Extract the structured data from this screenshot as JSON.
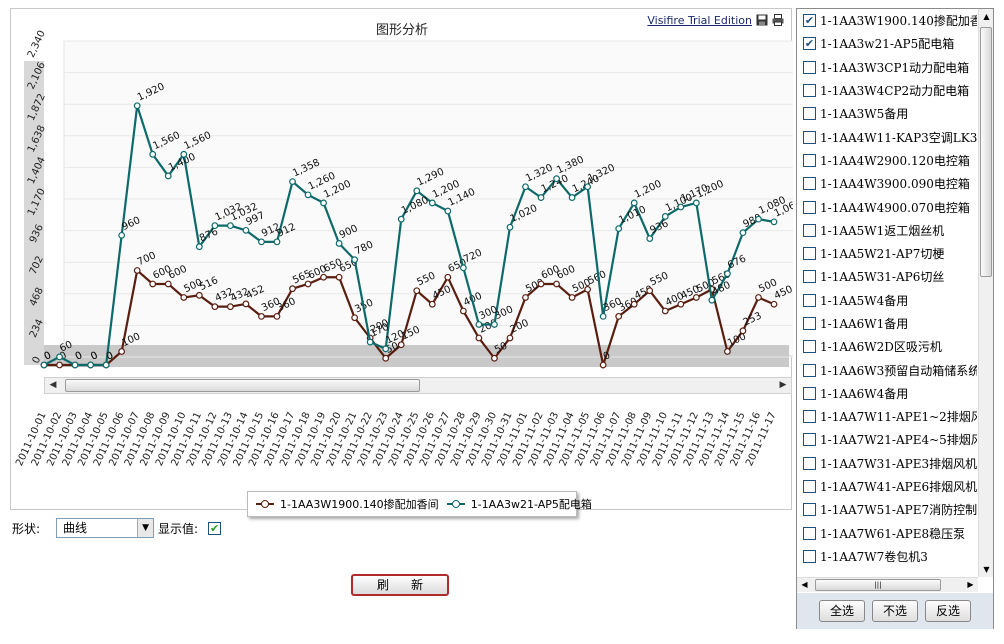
{
  "chart": {
    "title": "图形分析",
    "trial_link": "Visifire Trial Edition"
  },
  "legend": [
    {
      "name": "1-1AA3W1900.140掺配加香间",
      "color": "#5a1e10"
    },
    {
      "name": "1-1AA3w21-AP5配电箱",
      "color": "#0e6a6a"
    }
  ],
  "controls": {
    "shape_label": "形状:",
    "shape_value": "曲线",
    "show_values_label": "显示值:",
    "show_values_checked": true
  },
  "refresh_button": "刷新",
  "panel": {
    "items": [
      {
        "label": "1-1AA3W1900.140掺配加香间",
        "checked": true
      },
      {
        "label": "1-1AA3w21-AP5配电箱",
        "checked": true
      },
      {
        "label": "1-1AA3W3CP1动力配电箱",
        "checked": false
      },
      {
        "label": "1-1AA3W4CP2动力配电箱",
        "checked": false
      },
      {
        "label": "1-1AA3W5备用",
        "checked": false
      },
      {
        "label": "1-1AA4W11-KAP3空调LK3",
        "checked": false
      },
      {
        "label": "1-1AA4W2900.120电控箱",
        "checked": false
      },
      {
        "label": "1-1AA4W3900.090电控箱",
        "checked": false
      },
      {
        "label": "1-1AA4W4900.070电控箱",
        "checked": false
      },
      {
        "label": "1-1AA5W1返工烟丝机",
        "checked": false
      },
      {
        "label": "1-1AA5W21-AP7切梗",
        "checked": false
      },
      {
        "label": "1-1AA5W31-AP6切丝",
        "checked": false
      },
      {
        "label": "1-1AA5W4备用",
        "checked": false
      },
      {
        "label": "1-1AA6W1备用",
        "checked": false
      },
      {
        "label": "1-1AA6W2D区吸污机",
        "checked": false
      },
      {
        "label": "1-1AA6W3预留自动箱储系统",
        "checked": false
      },
      {
        "label": "1-1AA6W4备用",
        "checked": false
      },
      {
        "label": "1-1AA7W11-APE1~2排烟风机",
        "checked": false
      },
      {
        "label": "1-1AA7W21-APE4~5排烟风机",
        "checked": false
      },
      {
        "label": "1-1AA7W31-APE3排烟风机",
        "checked": false
      },
      {
        "label": "1-1AA7W41-APE6排烟风机",
        "checked": false
      },
      {
        "label": "1-1AA7W51-APE7消防控制室",
        "checked": false
      },
      {
        "label": "1-1AA7W61-APE8稳压泵",
        "checked": false
      },
      {
        "label": "1-1AA7W7卷包机3",
        "checked": false
      }
    ],
    "select_all": "全选",
    "select_none": "不选",
    "invert": "反选"
  },
  "chart_data": {
    "type": "line",
    "title": "图形分析",
    "xlabel": "",
    "ylabel": "",
    "ylim": [
      0,
      2340
    ],
    "yticks": [
      0,
      234,
      468,
      702,
      936,
      1170,
      1404,
      1638,
      1872,
      2106,
      2340
    ],
    "x": [
      "2011-10-01",
      "2011-10-02",
      "2011-10-03",
      "2011-10-04",
      "2011-10-05",
      "2011-10-06",
      "2011-10-07",
      "2011-10-08",
      "2011-10-09",
      "2011-10-10",
      "2011-10-11",
      "2011-10-12",
      "2011-10-13",
      "2011-10-14",
      "2011-10-15",
      "2011-10-16",
      "2011-10-17",
      "2011-10-18",
      "2011-10-19",
      "2011-10-20",
      "2011-10-21",
      "2011-10-22",
      "2011-10-23",
      "2011-10-24",
      "2011-10-25",
      "2011-10-26",
      "2011-10-27",
      "2011-10-28",
      "2011-10-29",
      "2011-10-30",
      "2011-10-31",
      "2011-11-01",
      "2011-11-02",
      "2011-11-03",
      "2011-11-04",
      "2011-11-05",
      "2011-11-06",
      "2011-11-07",
      "2011-11-08",
      "2011-11-09",
      "2011-11-10",
      "2011-11-11",
      "2011-11-12",
      "2011-11-13",
      "2011-11-14",
      "2011-11-15",
      "2011-11-16",
      "2011-11-17"
    ],
    "series": [
      {
        "name": "1-1AA3W1900.140掺配加香间",
        "color": "#5a1e10",
        "values": [
          0,
          0,
          0,
          0,
          0,
          100,
          700,
          600,
          600,
          500,
          516,
          432,
          432,
          452,
          360,
          360,
          565,
          600,
          650,
          650,
          350,
          200,
          50,
          150,
          550,
          450,
          650,
          400,
          200,
          50,
          200,
          500,
          600,
          600,
          500,
          560,
          0,
          360,
          450,
          550,
          400,
          450,
          500,
          560,
          100,
          253,
          500,
          450
        ]
      },
      {
        "name": "1-1AA3w21-AP5配电箱",
        "color": "#0e6a6a",
        "values": [
          0,
          60,
          0,
          0,
          0,
          960,
          1920,
          1560,
          1400,
          1560,
          876,
          1032,
          1032,
          997,
          912,
          912,
          1358,
          1260,
          1200,
          900,
          780,
          170,
          120,
          1080,
          1290,
          1200,
          1140,
          720,
          300,
          300,
          1020,
          1320,
          1240,
          1380,
          1240,
          1320,
          360,
          1010,
          1200,
          936,
          1100,
          1170,
          1200,
          480,
          676,
          980,
          1080,
          1060
        ]
      }
    ]
  }
}
